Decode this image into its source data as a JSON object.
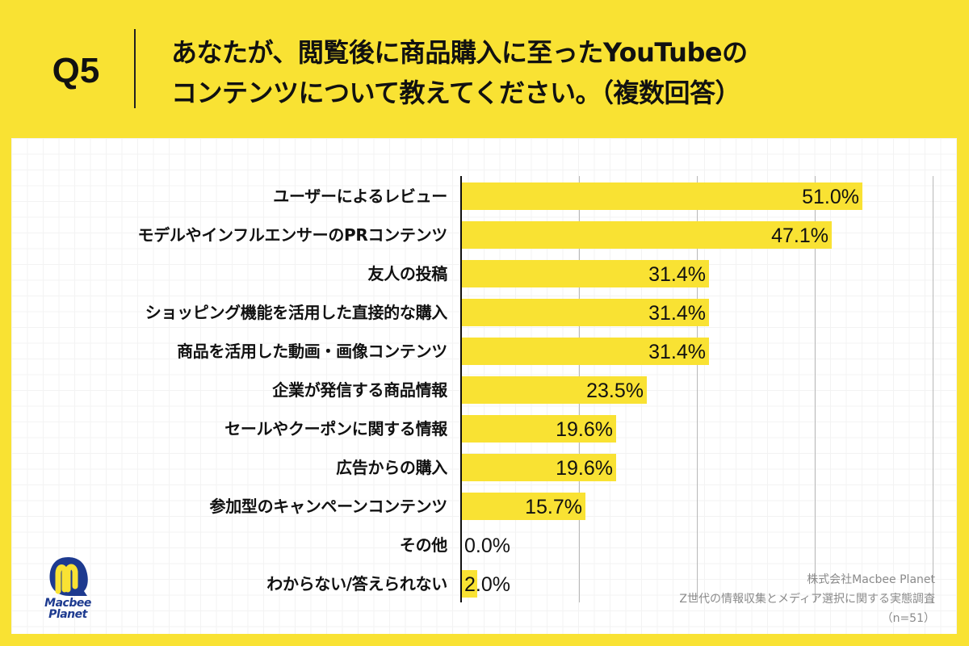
{
  "header": {
    "question_number": "Q5",
    "title_line1": "あなたが、閲覧後に商品購入に至ったYouTubeの",
    "title_line2": "コンテンツについて教えてください。（複数回答）"
  },
  "colors": {
    "background": "#f9e233",
    "bar": "#f9e233",
    "panel": "#ffffff",
    "axis": "#111111",
    "gridline": "#b8b8b8",
    "logo_blue": "#1d3a8f",
    "source_text": "#8a8a8a"
  },
  "chart_data": {
    "type": "bar",
    "orientation": "horizontal",
    "title": "あなたが、閲覧後に商品購入に至ったYouTubeのコンテンツについて教えてください。（複数回答）",
    "xlabel": "",
    "ylabel": "",
    "xlim": [
      0,
      60
    ],
    "gridlines_at": [
      15,
      30,
      45,
      60
    ],
    "grid": true,
    "legend": null,
    "unit": "%",
    "categories": [
      "ユーザーによるレビュー",
      "モデルやインフルエンサーのPRコンテンツ",
      "友人の投稿",
      "ショッピング機能を活用した直接的な購入",
      "商品を活用した動画・画像コンテンツ",
      "企業が発信する商品情報",
      "セールやクーポンに関する情報",
      "広告からの購入",
      "参加型のキャンペーンコンテンツ",
      "その他",
      "わからない/答えられない"
    ],
    "values": [
      51.0,
      47.1,
      31.4,
      31.4,
      31.4,
      23.5,
      19.6,
      19.6,
      15.7,
      0.0,
      2.0
    ],
    "value_labels": [
      "51.0%",
      "47.1%",
      "31.4%",
      "31.4%",
      "31.4%",
      "23.5%",
      "19.6%",
      "19.6%",
      "15.7%",
      "0.0%",
      "2.0%"
    ],
    "n": 51
  },
  "logo": {
    "line1": "Macbee",
    "line2": "Planet"
  },
  "source": {
    "company": "株式会社Macbee Planet",
    "survey": "Z世代の情報収集とメディア選択に関する実態調査",
    "sample": "（n=51）"
  }
}
